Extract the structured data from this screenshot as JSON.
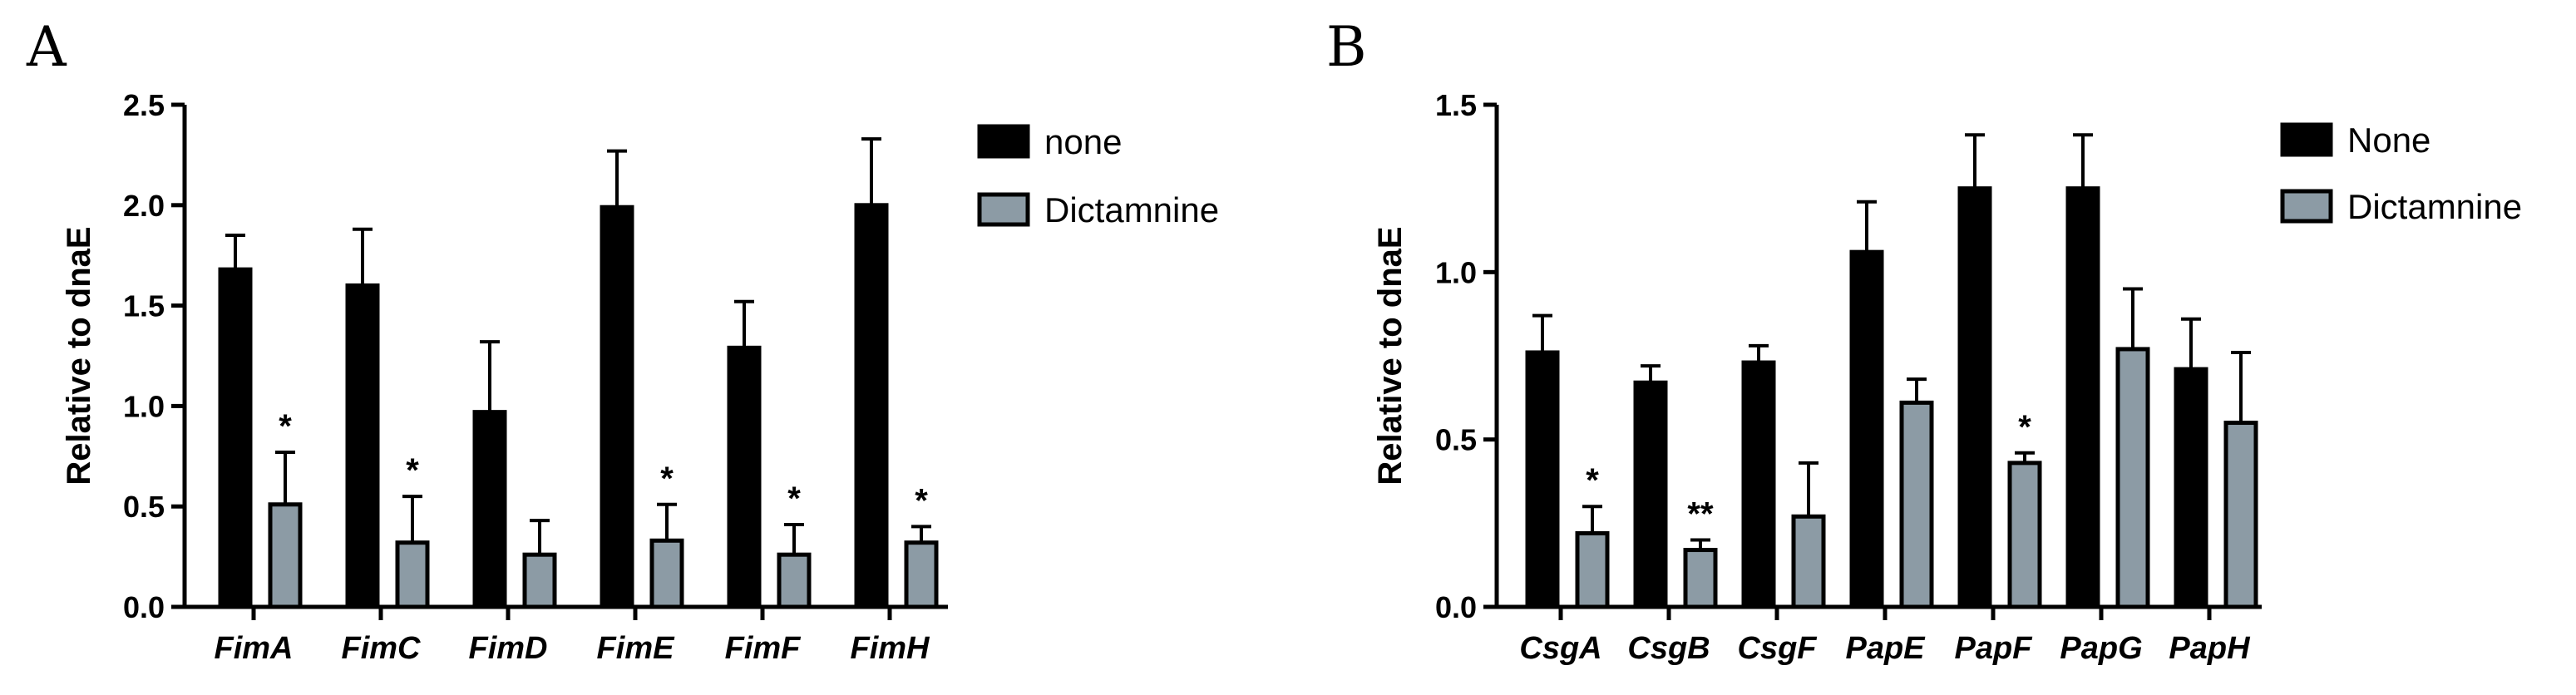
{
  "panels": [
    {
      "letter": "A"
    },
    {
      "letter": "B"
    }
  ],
  "colors": {
    "series1": "#000000",
    "series2": "#8c9ba5"
  },
  "chart_data": [
    {
      "type": "bar",
      "ylabel": "Relative to dnaE",
      "ylim": [
        0,
        2.5
      ],
      "yticks": [
        "0.0",
        "0.5",
        "1.0",
        "1.5",
        "2.0",
        "2.5"
      ],
      "categories": [
        "FimA",
        "FimC",
        "FimD",
        "FimE",
        "FimF",
        "FimH"
      ],
      "series": [
        {
          "name": "none",
          "values": [
            1.68,
            1.6,
            0.97,
            1.99,
            1.29,
            2.0
          ],
          "errors": [
            0.17,
            0.28,
            0.35,
            0.28,
            0.23,
            0.33
          ]
        },
        {
          "name": "Dictamnine",
          "values": [
            0.51,
            0.32,
            0.26,
            0.33,
            0.26,
            0.32
          ],
          "errors": [
            0.26,
            0.23,
            0.17,
            0.18,
            0.15,
            0.08
          ]
        }
      ],
      "annotations": [
        "*",
        "*",
        "",
        "*",
        "*",
        "*"
      ],
      "legend": "top-right",
      "grid": false
    },
    {
      "type": "bar",
      "ylabel": "Relative to dnaE",
      "ylim": [
        0,
        1.5
      ],
      "yticks": [
        "0.0",
        "0.5",
        "1.0",
        "1.5"
      ],
      "categories": [
        "CsgA",
        "CsgB",
        "CsgF",
        "PapE",
        "PapF",
        "PapG",
        "PapH"
      ],
      "series": [
        {
          "name": "None",
          "values": [
            0.76,
            0.67,
            0.73,
            1.06,
            1.25,
            1.25,
            0.71
          ],
          "errors": [
            0.11,
            0.05,
            0.05,
            0.15,
            0.16,
            0.16,
            0.15
          ]
        },
        {
          "name": "Dictamnine",
          "values": [
            0.22,
            0.17,
            0.27,
            0.61,
            0.43,
            0.77,
            0.55
          ],
          "errors": [
            0.08,
            0.03,
            0.16,
            0.07,
            0.03,
            0.18,
            0.21
          ]
        }
      ],
      "annotations": [
        "*",
        "**",
        "",
        "",
        "*",
        "",
        ""
      ],
      "legend": "top-right",
      "grid": false
    }
  ]
}
